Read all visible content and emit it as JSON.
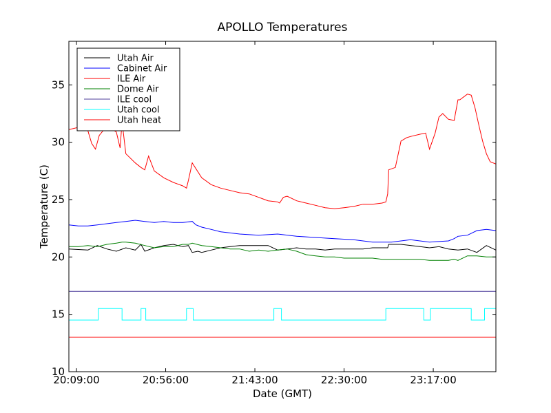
{
  "chart_data": {
    "type": "line",
    "title": "APOLLO Temperatures",
    "xlabel": "Date (GMT)",
    "ylabel": "Temperature (C)",
    "ylim": [
      10,
      38.8
    ],
    "xlim": [
      0,
      225
    ],
    "x_unit": "minutes since 20:05:00",
    "yticks": [
      10,
      15,
      20,
      25,
      30,
      35
    ],
    "xticks": [
      {
        "x": 4,
        "label": "20:09:00"
      },
      {
        "x": 51,
        "label": "20:56:00"
      },
      {
        "x": 98,
        "label": "21:43:00"
      },
      {
        "x": 145,
        "label": "22:30:00"
      },
      {
        "x": 192,
        "label": "23:17:00"
      }
    ],
    "legend_position": "top-left",
    "series": [
      {
        "name": "Utah Air",
        "color": "#000000",
        "x": [
          0,
          10,
          15,
          20,
          25,
          30,
          35,
          38,
          40,
          45,
          50,
          55,
          60,
          63,
          65,
          68,
          70,
          75,
          80,
          85,
          90,
          95,
          100,
          105,
          110,
          115,
          120,
          125,
          130,
          135,
          140,
          145,
          150,
          155,
          160,
          165,
          168,
          168.5,
          175,
          185,
          190,
          195,
          200,
          205,
          210,
          215,
          220,
          225
        ],
        "values": [
          20.7,
          20.6,
          21.0,
          20.7,
          20.5,
          20.8,
          20.6,
          21.1,
          20.5,
          20.8,
          21.0,
          21.1,
          20.9,
          21.0,
          20.4,
          20.5,
          20.4,
          20.6,
          20.8,
          20.9,
          21.0,
          21.0,
          21.0,
          21.0,
          20.6,
          20.7,
          20.8,
          20.7,
          20.7,
          20.6,
          20.7,
          20.7,
          20.7,
          20.7,
          20.8,
          20.8,
          20.8,
          21.1,
          21.1,
          20.9,
          20.8,
          20.9,
          20.7,
          20.6,
          20.7,
          20.4,
          21.0,
          20.6
        ]
      },
      {
        "name": "Cabinet Air",
        "color": "#0000ff",
        "x": [
          0,
          5,
          10,
          15,
          20,
          25,
          30,
          35,
          40,
          45,
          50,
          55,
          60,
          65,
          67,
          70,
          75,
          80,
          90,
          100,
          110,
          120,
          130,
          140,
          150,
          160,
          170,
          180,
          190,
          200,
          203,
          205,
          210,
          215,
          220,
          225
        ],
        "values": [
          22.8,
          22.7,
          22.7,
          22.8,
          22.9,
          23.0,
          23.1,
          23.2,
          23.1,
          23.0,
          23.1,
          23.0,
          23.0,
          23.1,
          22.8,
          22.6,
          22.4,
          22.2,
          22.0,
          21.9,
          22.0,
          21.8,
          21.7,
          21.6,
          21.5,
          21.3,
          21.3,
          21.5,
          21.3,
          21.4,
          21.6,
          21.8,
          21.9,
          22.3,
          22.4,
          22.3
        ]
      },
      {
        "name": "ILE Air",
        "color": "#ff0000",
        "x": [
          0,
          5,
          10,
          12,
          14,
          16,
          20,
          25,
          27,
          28,
          30,
          35,
          38,
          40,
          42,
          45,
          50,
          55,
          60,
          62,
          63,
          65,
          70,
          75,
          80,
          85,
          90,
          95,
          100,
          105,
          110,
          111,
          113,
          115,
          120,
          125,
          130,
          135,
          140,
          145,
          150,
          155,
          160,
          165,
          167,
          168,
          168.5,
          172,
          175,
          178,
          180,
          185,
          188,
          190,
          193,
          195,
          197,
          200,
          203,
          205,
          206,
          210,
          212,
          214,
          216,
          218,
          220,
          222,
          225
        ],
        "values": [
          31.1,
          31.3,
          31.0,
          29.9,
          29.4,
          30.6,
          31.4,
          30.9,
          29.5,
          31.8,
          29.0,
          28.2,
          27.8,
          27.6,
          28.8,
          27.5,
          26.9,
          26.5,
          26.2,
          26.0,
          26.7,
          28.2,
          26.9,
          26.3,
          26.0,
          25.8,
          25.6,
          25.5,
          25.2,
          24.9,
          24.8,
          24.7,
          25.2,
          25.3,
          24.9,
          24.7,
          24.5,
          24.3,
          24.2,
          24.3,
          24.4,
          24.6,
          24.6,
          24.7,
          24.8,
          25.5,
          27.6,
          27.8,
          30.1,
          30.4,
          30.5,
          30.7,
          30.8,
          29.4,
          30.8,
          32.2,
          32.5,
          32.0,
          31.9,
          33.7,
          33.7,
          34.2,
          34.1,
          33.0,
          31.5,
          30.1,
          29.0,
          28.3,
          28.1
        ]
      },
      {
        "name": "Dome Air",
        "color": "#008000",
        "x": [
          0,
          5,
          10,
          15,
          20,
          25,
          28,
          30,
          35,
          40,
          45,
          50,
          55,
          60,
          63,
          65,
          70,
          75,
          80,
          85,
          90,
          95,
          100,
          105,
          110,
          115,
          120,
          125,
          130,
          135,
          140,
          145,
          150,
          155,
          160,
          165,
          170,
          175,
          180,
          185,
          190,
          195,
          200,
          203,
          205,
          210,
          215,
          220,
          225
        ],
        "values": [
          20.9,
          20.9,
          21.0,
          20.9,
          21.1,
          21.2,
          21.3,
          21.3,
          21.2,
          21.0,
          20.8,
          20.9,
          20.9,
          21.1,
          21.1,
          21.2,
          21.0,
          20.9,
          20.8,
          20.7,
          20.7,
          20.5,
          20.6,
          20.5,
          20.6,
          20.7,
          20.5,
          20.2,
          20.1,
          20.0,
          20.0,
          19.9,
          19.9,
          19.9,
          19.9,
          19.8,
          19.8,
          19.8,
          19.8,
          19.8,
          19.7,
          19.7,
          19.7,
          19.8,
          19.7,
          20.1,
          20.1,
          20.0,
          20.0
        ]
      },
      {
        "name": "ILE cool",
        "color": "#4b3b9a",
        "x": [
          0,
          225
        ],
        "values": [
          17.0,
          17.0
        ]
      },
      {
        "name": "Utah cool",
        "color": "#00ffff",
        "x": [
          0,
          15.5,
          15.5,
          28,
          28,
          38,
          38,
          40.5,
          40.5,
          62,
          62,
          65.5,
          65.5,
          108,
          108,
          112,
          112,
          167,
          167,
          187,
          187,
          190.5,
          190.5,
          212,
          212,
          219,
          219,
          225
        ],
        "values": [
          14.5,
          14.5,
          15.5,
          15.5,
          14.5,
          14.5,
          15.5,
          15.5,
          14.5,
          14.5,
          15.5,
          15.5,
          14.5,
          14.5,
          15.5,
          15.5,
          14.5,
          14.5,
          15.5,
          15.5,
          14.5,
          14.5,
          15.5,
          15.5,
          14.5,
          14.5,
          15.5,
          15.5
        ]
      },
      {
        "name": "Utah heat",
        "color": "#ff0000",
        "x": [
          0,
          225
        ],
        "values": [
          13.0,
          13.0
        ]
      }
    ]
  }
}
